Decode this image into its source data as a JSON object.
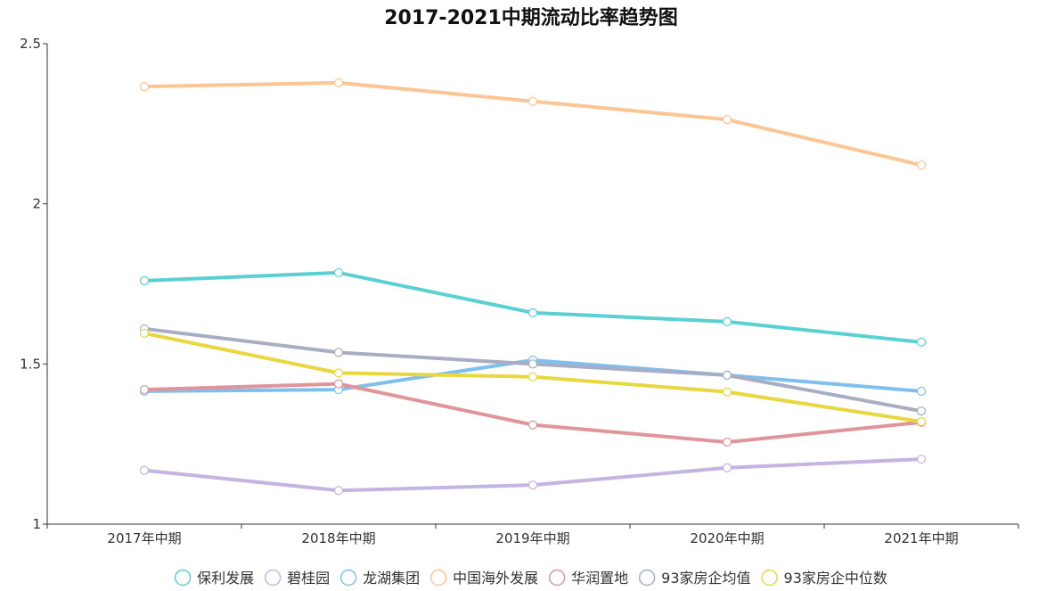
{
  "chart_data": {
    "type": "line",
    "title": "2017-2021中期流动比率趋势图",
    "xlabel": "",
    "ylabel": "",
    "categories": [
      "2017年中期",
      "2018年中期",
      "2019年中期",
      "2020年中期",
      "2021年中期"
    ],
    "ylim": [
      1,
      2.5
    ],
    "yticks": [
      1,
      1.5,
      2,
      2.5
    ],
    "ytick_labels": [
      "1",
      "1.5",
      "2",
      "2.5"
    ],
    "legend_position": "bottom-center",
    "grid": false,
    "series": [
      {
        "name": "保利发展",
        "color": "#5bd0d3",
        "values": [
          1.76,
          1.785,
          1.66,
          1.632,
          1.568
        ]
      },
      {
        "name": "碧桂园",
        "color": "#c5b3e2",
        "values": [
          1.168,
          1.105,
          1.122,
          1.176,
          1.203
        ]
      },
      {
        "name": "龙湖集团",
        "color": "#7fbff0",
        "values": [
          1.415,
          1.42,
          1.512,
          1.465,
          1.415
        ]
      },
      {
        "name": "中国海外发展",
        "color": "#fcc594",
        "values": [
          2.366,
          2.378,
          2.32,
          2.263,
          2.121
        ]
      },
      {
        "name": "华润置地",
        "color": "#e0959a",
        "values": [
          1.42,
          1.438,
          1.31,
          1.256,
          1.318
        ]
      },
      {
        "name": "93家房企均值",
        "color": "#a7adc2",
        "values": [
          1.61,
          1.536,
          1.5,
          1.465,
          1.353
        ]
      },
      {
        "name": "93家房企中位数",
        "color": "#e8d73e",
        "values": [
          1.596,
          1.472,
          1.46,
          1.413,
          1.32
        ]
      }
    ]
  }
}
